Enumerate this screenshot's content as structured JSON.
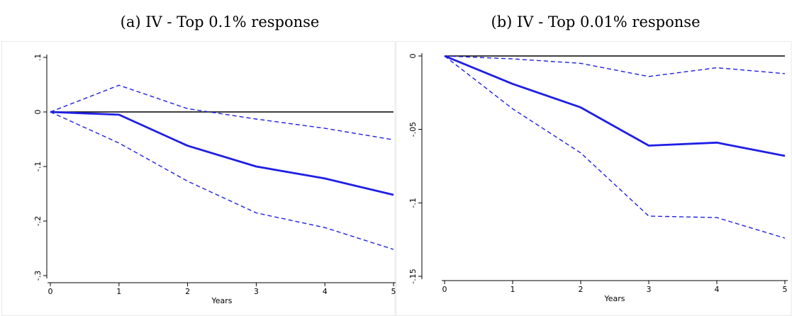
{
  "panels": {
    "a": {
      "title": "(a) IV - Top 0.1% response"
    },
    "b": {
      "title": "(b) IV - Top 0.01% response"
    }
  },
  "colors": {
    "series": "#1f1fe6",
    "zero_line": "#000000",
    "axis": "#000000",
    "panel_border": "#e8e8e8"
  },
  "chart_data": [
    {
      "type": "line",
      "title": "(a) IV - Top 0.1% response",
      "xlabel": "Years",
      "ylabel": "",
      "x": [
        0,
        1,
        2,
        3,
        4,
        5
      ],
      "xlim": [
        0,
        5
      ],
      "ylim": [
        -0.3,
        0.1
      ],
      "x_ticks": [
        0,
        1,
        2,
        3,
        4,
        5
      ],
      "x_tick_labels": [
        "0",
        "1",
        "2",
        "3",
        "4",
        "5"
      ],
      "y_ticks": [
        0.1,
        0,
        -0.1,
        -0.2,
        -0.3
      ],
      "y_tick_labels": [
        ".1",
        "0",
        "-.1",
        "-.2",
        "-.3"
      ],
      "grid": false,
      "reference_line": 0,
      "series": [
        {
          "role": "point-estimate",
          "style": "solid",
          "values": [
            0,
            -0.005,
            -0.062,
            -0.1,
            -0.122,
            -0.152
          ]
        },
        {
          "role": "upper-bound",
          "style": "dashed",
          "values": [
            0,
            0.049,
            0.006,
            -0.013,
            -0.03,
            -0.051
          ]
        },
        {
          "role": "lower-bound",
          "style": "dashed",
          "values": [
            0,
            -0.057,
            -0.127,
            -0.185,
            -0.212,
            -0.252
          ]
        }
      ]
    },
    {
      "type": "line",
      "title": "(b) IV - Top 0.01% response",
      "xlabel": "Years",
      "ylabel": "",
      "x": [
        0,
        1,
        2,
        3,
        4,
        5
      ],
      "xlim": [
        0,
        5
      ],
      "ylim": [
        -0.15,
        0
      ],
      "x_ticks": [
        0,
        1,
        2,
        3,
        4,
        5
      ],
      "x_tick_labels": [
        "0",
        "1",
        "2",
        "3",
        "4",
        "5"
      ],
      "y_ticks": [
        0,
        -0.05,
        -0.1,
        -0.15
      ],
      "y_tick_labels": [
        "0",
        "-.05",
        "-.1",
        "-.15"
      ],
      "grid": false,
      "reference_line": 0,
      "series": [
        {
          "role": "point-estimate",
          "style": "solid",
          "values": [
            0,
            -0.019,
            -0.035,
            -0.061,
            -0.059,
            -0.068
          ]
        },
        {
          "role": "upper-bound",
          "style": "dashed",
          "values": [
            0,
            -0.002,
            -0.005,
            -0.014,
            -0.008,
            -0.012
          ]
        },
        {
          "role": "lower-bound",
          "style": "dashed",
          "values": [
            0,
            -0.036,
            -0.066,
            -0.109,
            -0.11,
            -0.124
          ]
        }
      ]
    }
  ]
}
